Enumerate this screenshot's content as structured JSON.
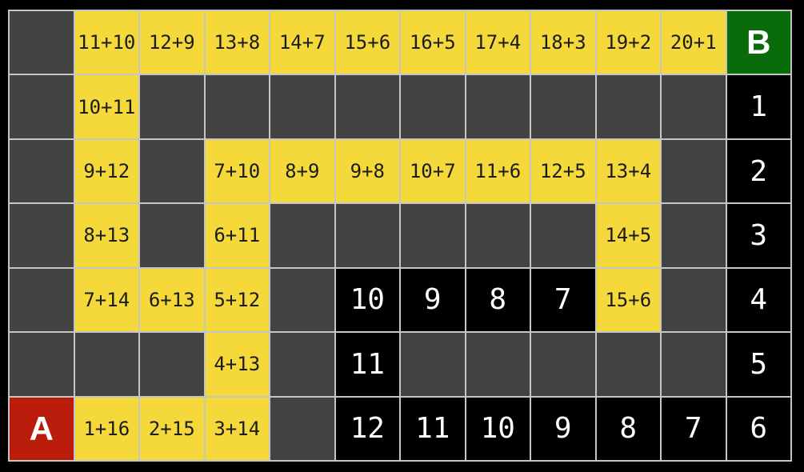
{
  "title": "math-addition-maze",
  "colors": {
    "background": "#000000",
    "wall": "#434343",
    "path": "#F5D93B",
    "black_cell": "#000000",
    "start": "#BB1D0D",
    "goal": "#0A6B0A",
    "grid_line": "#C6C6C6",
    "path_text": "#1C1C1C",
    "number_text": "#FFFFFF"
  },
  "start_label": "A",
  "goal_label": "B",
  "grid": {
    "rows": 7,
    "cols": 12,
    "cells": [
      [
        {
          "t": "wall",
          "v": ""
        },
        {
          "t": "path",
          "v": "11+10"
        },
        {
          "t": "path",
          "v": "12+9"
        },
        {
          "t": "path",
          "v": "13+8"
        },
        {
          "t": "path",
          "v": "14+7"
        },
        {
          "t": "path",
          "v": "15+6"
        },
        {
          "t": "path",
          "v": "16+5"
        },
        {
          "t": "path",
          "v": "17+4"
        },
        {
          "t": "path",
          "v": "18+3"
        },
        {
          "t": "path",
          "v": "19+2"
        },
        {
          "t": "path",
          "v": "20+1"
        },
        {
          "t": "goal",
          "v": "B"
        }
      ],
      [
        {
          "t": "wall",
          "v": ""
        },
        {
          "t": "path",
          "v": "10+11"
        },
        {
          "t": "wall",
          "v": ""
        },
        {
          "t": "wall",
          "v": ""
        },
        {
          "t": "wall",
          "v": ""
        },
        {
          "t": "wall",
          "v": ""
        },
        {
          "t": "wall",
          "v": ""
        },
        {
          "t": "wall",
          "v": ""
        },
        {
          "t": "wall",
          "v": ""
        },
        {
          "t": "wall",
          "v": ""
        },
        {
          "t": "wall",
          "v": ""
        },
        {
          "t": "count",
          "v": "1"
        }
      ],
      [
        {
          "t": "wall",
          "v": ""
        },
        {
          "t": "path",
          "v": "9+12"
        },
        {
          "t": "wall",
          "v": ""
        },
        {
          "t": "path",
          "v": "7+10"
        },
        {
          "t": "path",
          "v": "8+9"
        },
        {
          "t": "path",
          "v": "9+8"
        },
        {
          "t": "path",
          "v": "10+7"
        },
        {
          "t": "path",
          "v": "11+6"
        },
        {
          "t": "path",
          "v": "12+5"
        },
        {
          "t": "path",
          "v": "13+4"
        },
        {
          "t": "wall",
          "v": ""
        },
        {
          "t": "count",
          "v": "2"
        }
      ],
      [
        {
          "t": "wall",
          "v": ""
        },
        {
          "t": "path",
          "v": "8+13"
        },
        {
          "t": "wall",
          "v": ""
        },
        {
          "t": "path",
          "v": "6+11"
        },
        {
          "t": "wall",
          "v": ""
        },
        {
          "t": "wall",
          "v": ""
        },
        {
          "t": "wall",
          "v": ""
        },
        {
          "t": "wall",
          "v": ""
        },
        {
          "t": "wall",
          "v": ""
        },
        {
          "t": "path",
          "v": "14+5"
        },
        {
          "t": "wall",
          "v": ""
        },
        {
          "t": "count",
          "v": "3"
        }
      ],
      [
        {
          "t": "wall",
          "v": ""
        },
        {
          "t": "path",
          "v": "7+14"
        },
        {
          "t": "path",
          "v": "6+13"
        },
        {
          "t": "path",
          "v": "5+12"
        },
        {
          "t": "wall",
          "v": ""
        },
        {
          "t": "count",
          "v": "10"
        },
        {
          "t": "count",
          "v": "9"
        },
        {
          "t": "count",
          "v": "8"
        },
        {
          "t": "count",
          "v": "7"
        },
        {
          "t": "path",
          "v": "15+6"
        },
        {
          "t": "wall",
          "v": ""
        },
        {
          "t": "count",
          "v": "4"
        }
      ],
      [
        {
          "t": "wall",
          "v": ""
        },
        {
          "t": "wall",
          "v": ""
        },
        {
          "t": "wall",
          "v": ""
        },
        {
          "t": "path",
          "v": "4+13"
        },
        {
          "t": "wall",
          "v": ""
        },
        {
          "t": "count",
          "v": "11"
        },
        {
          "t": "wall",
          "v": ""
        },
        {
          "t": "wall",
          "v": ""
        },
        {
          "t": "wall",
          "v": ""
        },
        {
          "t": "wall",
          "v": ""
        },
        {
          "t": "wall",
          "v": ""
        },
        {
          "t": "count",
          "v": "5"
        }
      ],
      [
        {
          "t": "start",
          "v": "A"
        },
        {
          "t": "path",
          "v": "1+16"
        },
        {
          "t": "path",
          "v": "2+15"
        },
        {
          "t": "path",
          "v": "3+14"
        },
        {
          "t": "wall",
          "v": ""
        },
        {
          "t": "count",
          "v": "12"
        },
        {
          "t": "count",
          "v": "11"
        },
        {
          "t": "count",
          "v": "10"
        },
        {
          "t": "count",
          "v": "9"
        },
        {
          "t": "count",
          "v": "8"
        },
        {
          "t": "count",
          "v": "7"
        },
        {
          "t": "count",
          "v": "6"
        }
      ]
    ]
  }
}
